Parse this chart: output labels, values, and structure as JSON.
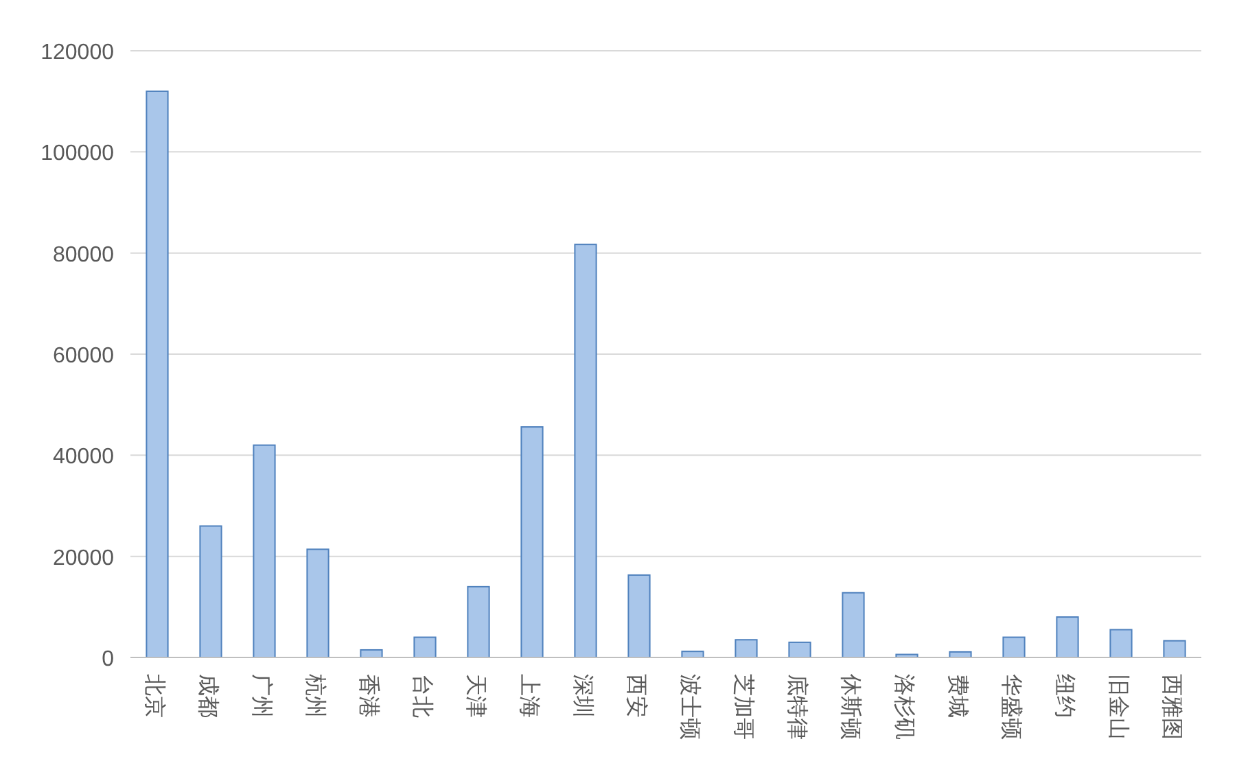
{
  "chart_data": {
    "type": "bar",
    "categories": [
      "北京",
      "成都",
      "广州",
      "杭州",
      "香港",
      "台北",
      "天津",
      "上海",
      "深圳",
      "西安",
      "波士顿",
      "芝加哥",
      "底特律",
      "休斯顿",
      "洛杉矶",
      "费城",
      "华盛顿",
      "纽约",
      "旧金山",
      "西雅图"
    ],
    "values": [
      112000,
      26000,
      42000,
      21400,
      1500,
      4000,
      14000,
      45600,
      81700,
      16300,
      1200,
      3500,
      3000,
      12800,
      600,
      1100,
      4000,
      8000,
      5500,
      3300
    ],
    "color": "#a9c6ea",
    "ylim": [
      0,
      120000
    ],
    "yticks": [
      0,
      20000,
      40000,
      60000,
      80000,
      100000,
      120000
    ],
    "grid": "y"
  }
}
